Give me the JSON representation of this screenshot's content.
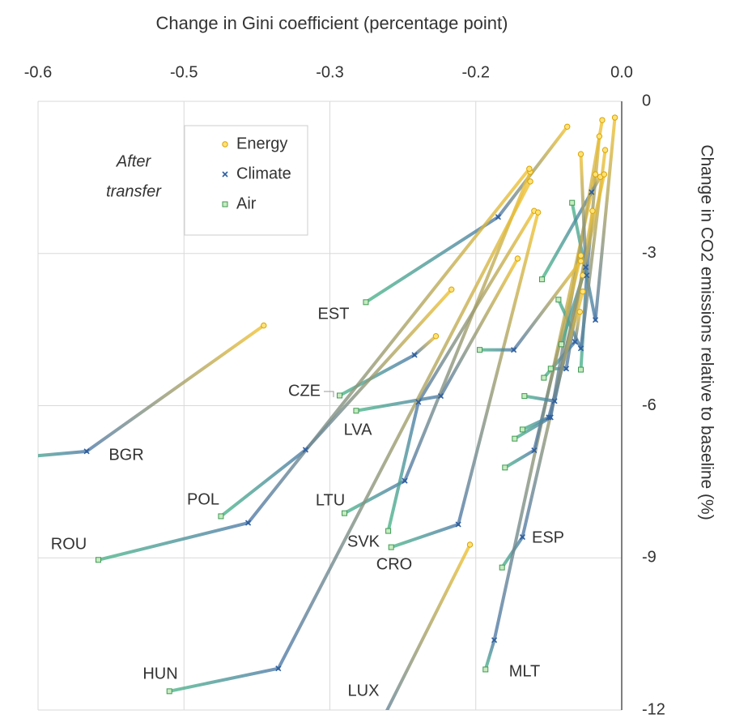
{
  "chart_data": {
    "type": "scatter",
    "title": "Change in Gini coefficient (percentage point)",
    "y_axis_label": "Change in CO2 emissions relative to baseline (%)",
    "annotation_lines": [
      "After",
      "transfer"
    ],
    "xlim": [
      -0.6,
      0
    ],
    "ylim": [
      -12,
      0
    ],
    "xticks": [
      {
        "value": -0.6,
        "label": "-0.6"
      },
      {
        "value": -0.45,
        "label": "-0.5"
      },
      {
        "value": -0.3,
        "label": "-0.3"
      },
      {
        "value": -0.15,
        "label": "-0.2"
      },
      {
        "value": 0,
        "label": "0.0"
      }
    ],
    "yticks": [
      0,
      -3,
      -6,
      -9,
      -12
    ],
    "grid": true,
    "point_labels": [
      "EST",
      "CZE",
      "LVA",
      "BGR",
      "POL",
      "LTU",
      "ROU",
      "SVK",
      "CRO",
      "ESP",
      "MLT",
      "HUN",
      "LUX",
      null,
      null,
      null,
      null,
      null,
      null,
      null,
      null,
      null,
      null,
      null,
      null
    ],
    "series": [
      {
        "name": "Energy",
        "color": "#f2c230",
        "x": [
          -0.056,
          -0.191,
          -0.107,
          -0.368,
          -0.175,
          -0.094,
          -0.095,
          -0.09,
          -0.086,
          -0.04,
          -0.027,
          -0.094,
          -0.156,
          -0.023,
          -0.007,
          -0.017,
          -0.022,
          -0.03,
          -0.043,
          -0.02,
          -0.042,
          -0.042,
          -0.042,
          -0.018,
          -0.04
        ],
        "y": [
          -0.5,
          -4.63,
          -3.1,
          -4.42,
          -3.71,
          -1.39,
          -1.33,
          -2.16,
          -2.19,
          -3.43,
          -1.44,
          -1.58,
          -8.74,
          -0.69,
          -0.32,
          -0.96,
          -1.49,
          -2.16,
          -4.15,
          -0.37,
          -1.04,
          -3.04,
          -3.15,
          -1.44,
          -3.75
        ]
      },
      {
        "name": "Climate",
        "color": "#4f7aa8",
        "x": [
          -0.127,
          -0.213,
          -0.186,
          -0.55,
          -0.325,
          -0.223,
          -0.384,
          -0.209,
          -0.168,
          -0.102,
          -0.131,
          -0.353,
          -0.256,
          -0.036,
          -0.027,
          -0.042,
          -0.031,
          -0.057,
          -0.048,
          -0.073,
          -0.037,
          -0.09,
          -0.111,
          -0.069,
          -0.075
        ],
        "y": [
          -2.28,
          -5.0,
          -5.81,
          -6.9,
          -6.87,
          -7.48,
          -8.31,
          -5.93,
          -8.34,
          -8.59,
          -10.62,
          -11.18,
          -12.57,
          -3.43,
          -4.31,
          -4.87,
          -1.79,
          -5.27,
          -4.74,
          -6.23,
          -3.27,
          -6.88,
          -4.9,
          -5.91,
          -6.23
        ]
      },
      {
        "name": "Air",
        "color": "#4cb58a",
        "x": [
          -0.263,
          -0.29,
          -0.273,
          -0.62,
          -0.412,
          -0.285,
          -0.538,
          -0.24,
          -0.237,
          -0.123,
          -0.14,
          -0.465,
          -0.265,
          -0.042,
          -0.051,
          -0.065,
          -0.082,
          -0.073,
          -0.08,
          -0.11,
          -0.062,
          -0.12,
          -0.146,
          -0.1,
          -0.102
        ],
        "y": [
          -3.96,
          -5.8,
          -6.1,
          -7.02,
          -8.18,
          -8.12,
          -9.04,
          -8.47,
          -8.79,
          -9.19,
          -11.2,
          -11.63,
          -12.89,
          -5.29,
          -2.0,
          -3.91,
          -3.51,
          -5.27,
          -5.45,
          -6.65,
          -4.79,
          -7.22,
          -4.9,
          -5.81,
          -6.47
        ]
      }
    ]
  }
}
